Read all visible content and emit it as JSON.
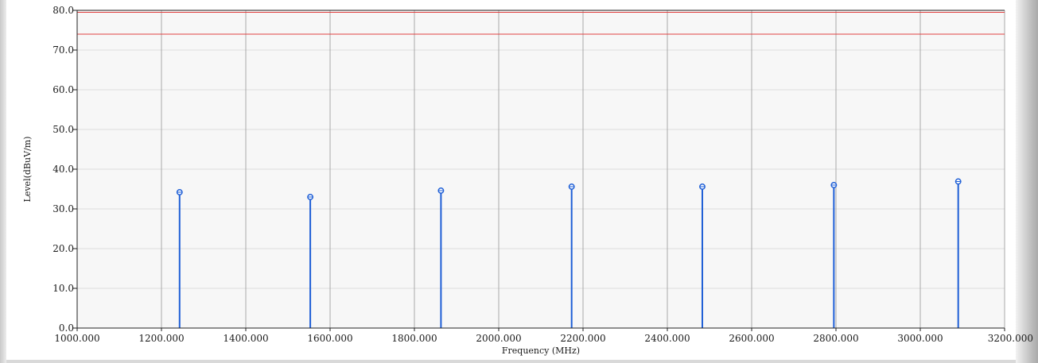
{
  "chart_data": {
    "type": "scatter",
    "marker_style": "stem",
    "xlabel": "Frequency (MHz)",
    "ylabel": "Level(dBuV/m)",
    "xlim": [
      1000,
      3200
    ],
    "ylim": [
      0,
      80
    ],
    "x_ticks": [
      1000,
      1200,
      1400,
      1600,
      1800,
      2000,
      2200,
      2400,
      2600,
      2800,
      3000,
      3200
    ],
    "x_tick_labels": [
      "1000.000",
      "1200.000",
      "1400.000",
      "1600.000",
      "1800.000",
      "2000.000",
      "2200.000",
      "2400.000",
      "2600.000",
      "2800.000",
      "3000.000",
      "3200.000"
    ],
    "y_ticks": [
      0,
      10,
      20,
      30,
      40,
      50,
      60,
      70,
      80
    ],
    "y_tick_labels": [
      "0.0",
      "10.0",
      "20.0",
      "30.0",
      "40.0",
      "50.0",
      "60.0",
      "70.0",
      "80.0"
    ],
    "grid": true,
    "series": [
      {
        "points": [
          {
            "x": 1243,
            "y": 34.2
          },
          {
            "x": 1553,
            "y": 33.0
          },
          {
            "x": 1863,
            "y": 34.6
          },
          {
            "x": 2173,
            "y": 35.6
          },
          {
            "x": 2483,
            "y": 35.6
          },
          {
            "x": 2795,
            "y": 36.0
          },
          {
            "x": 3090,
            "y": 36.9
          }
        ]
      }
    ],
    "limit_lines": [
      {
        "y": 74
      },
      {
        "y": 79.5
      }
    ],
    "colors": {
      "stem": "#1f5fd6",
      "limit": "#e04040",
      "grid_vertical": "#a8a8a8",
      "grid_horizontal": "#dcdcdc",
      "plot_background": "#f7f7f7"
    }
  }
}
